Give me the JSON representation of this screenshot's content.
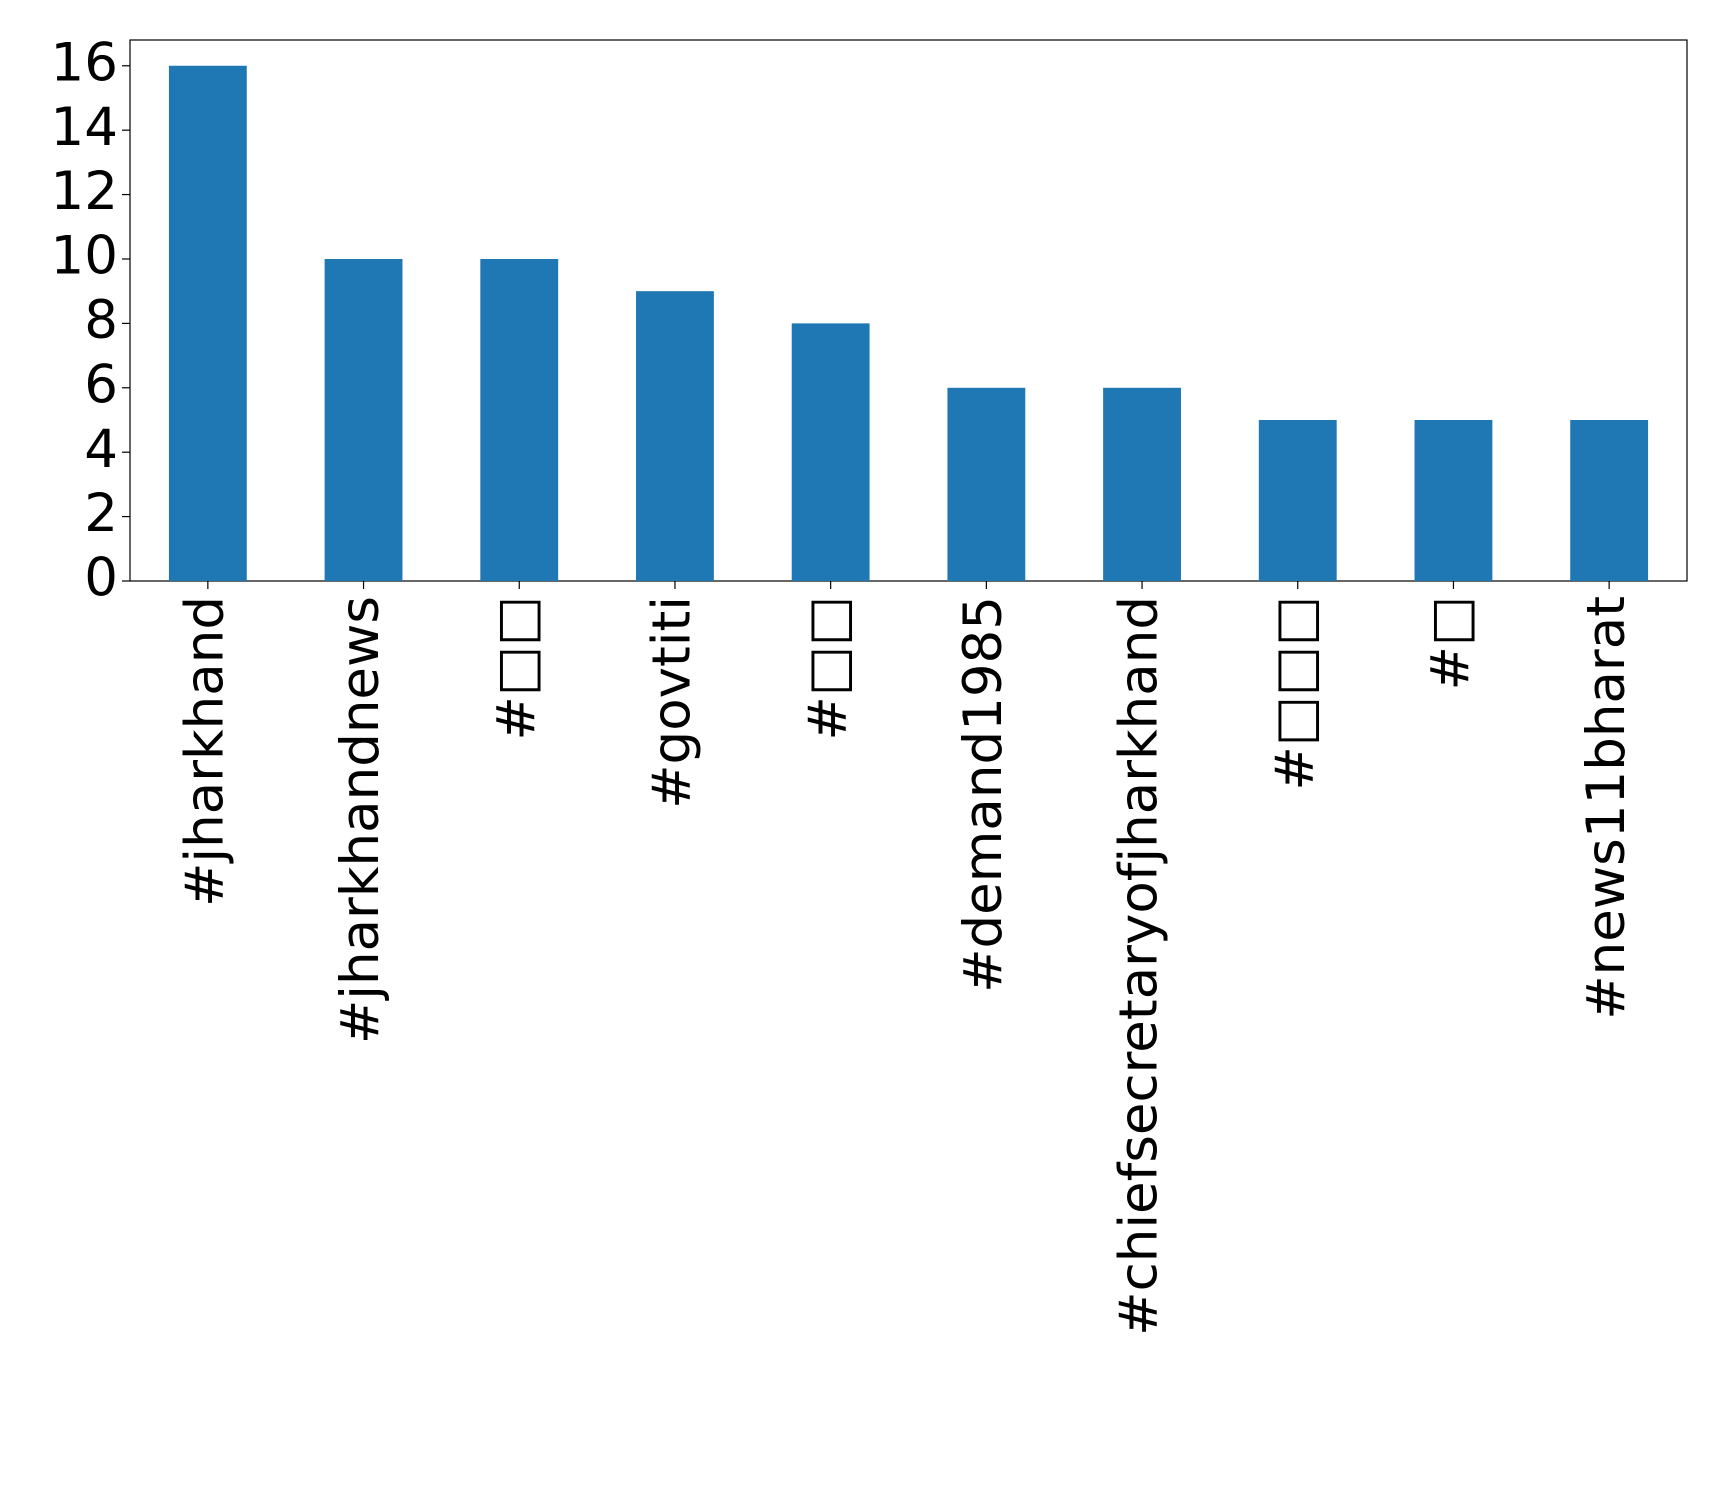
{
  "chart_data": {
    "type": "bar",
    "categories": [
      "#jharkhand",
      "#jharkhandnews",
      "#□□",
      "#govtiti",
      "#□□",
      "#demand1985",
      "#chiefsecretaryofjharkhand",
      "#□□□",
      "#□",
      "#news11bharat"
    ],
    "values": [
      16,
      10,
      10,
      9,
      8,
      6,
      6,
      5,
      5,
      5
    ],
    "color": "#1f77b4",
    "ylim": [
      0,
      16.8
    ],
    "yticks": [
      0,
      2,
      4,
      6,
      8,
      10,
      12,
      14,
      16
    ],
    "grid": false
  }
}
